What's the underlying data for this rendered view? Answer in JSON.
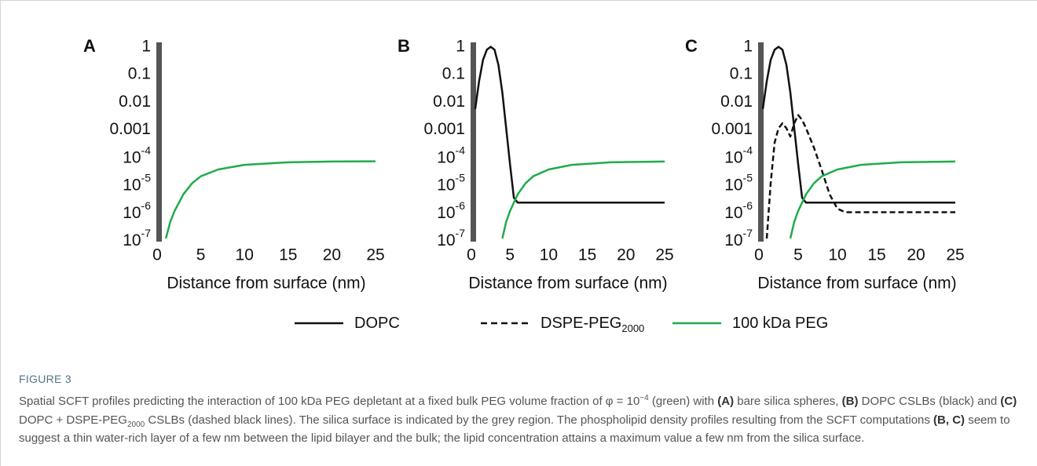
{
  "chart_data": [
    {
      "type": "line",
      "panel_label": "A",
      "x_label": "Distance from surface (nm)",
      "xlim": [
        0,
        25
      ],
      "xticks": [
        0,
        5,
        10,
        15,
        20,
        25
      ],
      "ylim": [
        1e-07,
        1
      ],
      "log_y": true,
      "yticks": [
        1,
        0.1,
        0.01,
        0.001,
        {
          "value": 0.0001,
          "label": "10",
          "label_exponent": "-4"
        },
        {
          "value": 1e-05,
          "label": "10",
          "label_exponent": "-5"
        },
        {
          "value": 1e-06,
          "label": "10",
          "label_exponent": "-6"
        },
        {
          "value": 1e-07,
          "label": "10",
          "label_exponent": "-7"
        }
      ],
      "series": [
        {
          "name": "100 kDa PEG",
          "color": "#1fac4a",
          "linestyle": "solid",
          "x": [
            1,
            1.5,
            2,
            3,
            4,
            5,
            7,
            10,
            15,
            20,
            25
          ],
          "values": [
            1e-07,
            4e-07,
            1e-06,
            4e-06,
            1e-05,
            1.8e-05,
            3.2e-05,
            4.7e-05,
            5.8e-05,
            6.2e-05,
            6.3e-05
          ]
        }
      ]
    },
    {
      "type": "line",
      "panel_label": "B",
      "x_label": "Distance from surface (nm)",
      "xlim": [
        0,
        25
      ],
      "xticks": [
        0,
        5,
        10,
        15,
        20,
        25
      ],
      "ylim": [
        1e-07,
        1
      ],
      "log_y": true,
      "yticks": [
        1,
        0.1,
        0.01,
        0.001,
        {
          "value": 0.0001,
          "label": "10",
          "label_exponent": "-4"
        },
        {
          "value": 1e-05,
          "label": "10",
          "label_exponent": "-5"
        },
        {
          "value": 1e-06,
          "label": "10",
          "label_exponent": "-6"
        },
        {
          "value": 1e-07,
          "label": "10",
          "label_exponent": "-7"
        }
      ],
      "series": [
        {
          "name": "DOPC",
          "color": "#111111",
          "linestyle": "solid",
          "x": [
            0.5,
            1,
            1.5,
            2,
            2.5,
            3,
            3.5,
            4,
            4.5,
            5,
            5.5,
            6,
            7,
            10,
            15,
            20,
            25
          ],
          "values": [
            0.005,
            0.05,
            0.3,
            0.7,
            0.9,
            0.7,
            0.2,
            0.02,
            0.001,
            5e-05,
            3e-06,
            2e-06,
            2e-06,
            2e-06,
            2e-06,
            2e-06,
            2e-06
          ]
        },
        {
          "name": "100 kDa PEG",
          "color": "#1fac4a",
          "linestyle": "solid",
          "x": [
            4,
            4.5,
            5,
            6,
            7,
            8,
            10,
            13,
            18,
            25
          ],
          "values": [
            1e-07,
            4e-07,
            1e-06,
            4e-06,
            1e-05,
            1.8e-05,
            3.2e-05,
            4.7e-05,
            5.8e-05,
            6.2e-05
          ]
        }
      ]
    },
    {
      "type": "line",
      "panel_label": "C",
      "x_label": "Distance from surface (nm)",
      "xlim": [
        0,
        25
      ],
      "xticks": [
        0,
        5,
        10,
        15,
        20,
        25
      ],
      "ylim": [
        1e-07,
        1
      ],
      "log_y": true,
      "yticks": [
        1,
        0.1,
        0.01,
        0.001,
        {
          "value": 0.0001,
          "label": "10",
          "label_exponent": "-4"
        },
        {
          "value": 1e-05,
          "label": "10",
          "label_exponent": "-5"
        },
        {
          "value": 1e-06,
          "label": "10",
          "label_exponent": "-6"
        },
        {
          "value": 1e-07,
          "label": "10",
          "label_exponent": "-7"
        }
      ],
      "series": [
        {
          "name": "DOPC",
          "color": "#111111",
          "linestyle": "solid",
          "x": [
            0.5,
            1,
            1.5,
            2,
            2.5,
            3,
            3.5,
            4,
            4.5,
            5,
            5.5,
            6,
            7,
            10,
            15,
            20,
            25
          ],
          "values": [
            0.005,
            0.05,
            0.3,
            0.7,
            0.9,
            0.7,
            0.2,
            0.02,
            0.001,
            5e-05,
            3e-06,
            2e-06,
            2e-06,
            2e-06,
            2e-06,
            2e-06,
            2e-06
          ]
        },
        {
          "name": "DSPE-PEG",
          "name_subscript": "2000",
          "color": "#111111",
          "linestyle": "dashed",
          "x": [
            1,
            1.5,
            2,
            2.5,
            3,
            3.5,
            4,
            4.5,
            5,
            5.5,
            6,
            7,
            8,
            9,
            10,
            11,
            15,
            20,
            25
          ],
          "values": [
            1e-07,
            1e-05,
            0.0003,
            0.001,
            0.0015,
            0.001,
            0.0005,
            0.0015,
            0.003,
            0.002,
            0.001,
            0.0002,
            3e-05,
            4e-06,
            1.2e-06,
            9e-07,
            9e-07,
            9e-07,
            9e-07
          ]
        },
        {
          "name": "100 kDa PEG",
          "color": "#1fac4a",
          "linestyle": "solid",
          "x": [
            4,
            4.5,
            5,
            6,
            7,
            8,
            10,
            13,
            18,
            25
          ],
          "values": [
            1e-07,
            4e-07,
            1e-06,
            4e-06,
            1e-05,
            1.8e-05,
            3.2e-05,
            4.7e-05,
            5.8e-05,
            6.2e-05
          ]
        }
      ]
    }
  ],
  "figure": {
    "label": "FIGURE 3",
    "caption": [
      {
        "text": "Spatial SCFT profiles predicting the interaction of 100 kDa PEG depletant at a fixed bulk PEG volume fraction of φ = 10"
      },
      {
        "text": "−4",
        "style": "sup"
      },
      {
        "text": " (green) with "
      },
      {
        "text": "(A)",
        "style": "bold"
      },
      {
        "text": " bare silica spheres, "
      },
      {
        "text": "(B)",
        "style": "bold"
      },
      {
        "text": " DOPC CSLBs (black) and "
      },
      {
        "text": "(C)",
        "style": "bold"
      },
      {
        "text": " DOPC + DSPE-PEG"
      },
      {
        "text": "2000",
        "style": "sub"
      },
      {
        "text": " CSLBs (dashed black lines). The silica surface is indicated by the grey region. The phospholipid density profiles resulting from the SCFT computations "
      },
      {
        "text": "(B, C)",
        "style": "bold"
      },
      {
        "text": " seem to suggest a thin water-rich layer of a few nm between the lipid bilayer and the bulk; the lipid concentration attains a maximum value a few nm from the silica surface."
      }
    ]
  }
}
